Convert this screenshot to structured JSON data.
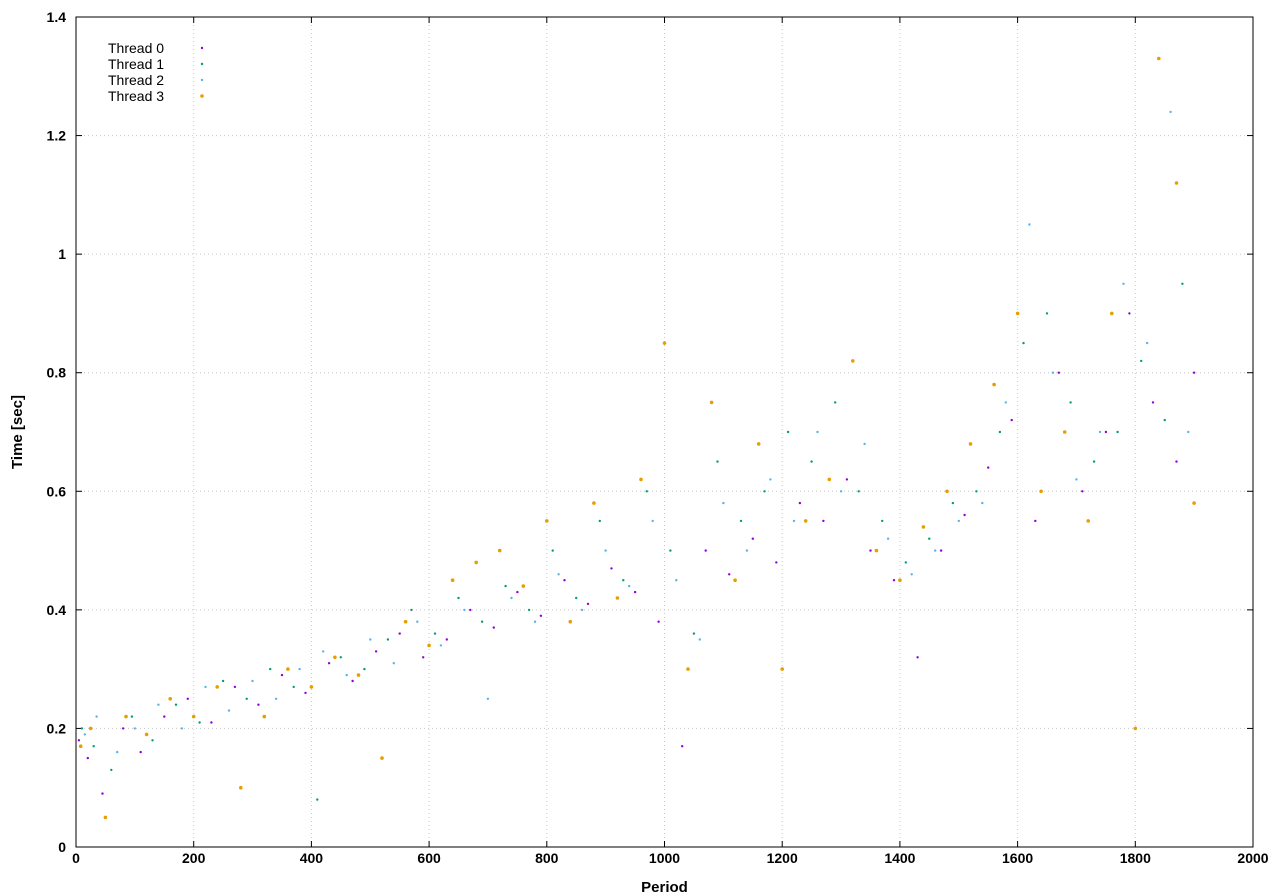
{
  "chart_data": {
    "type": "scatter",
    "title": "",
    "xlabel": "Period",
    "ylabel": "Time [sec]",
    "xlim": [
      0,
      2000
    ],
    "ylim": [
      0,
      1.4
    ],
    "xticks": [
      "0",
      "200",
      "400",
      "600",
      "800",
      "1000",
      "1200",
      "1400",
      "1600",
      "1800",
      "2000"
    ],
    "yticks": [
      "0",
      "0.2",
      "0.4",
      "0.6",
      "0.8",
      "1",
      "1.2",
      "1.4"
    ],
    "grid": true,
    "legend_position": "top-left",
    "series": [
      {
        "name": "Thread 0",
        "color": "#9400d3",
        "x": [
          5,
          20,
          45,
          80,
          110,
          150,
          190,
          230,
          270,
          310,
          350,
          390,
          430,
          470,
          510,
          550,
          590,
          630,
          670,
          710,
          750,
          790,
          830,
          870,
          910,
          950,
          990,
          1030,
          1070,
          1110,
          1150,
          1190,
          1230,
          1270,
          1310,
          1350,
          1390,
          1430,
          1470,
          1510,
          1550,
          1590,
          1630,
          1670,
          1710,
          1750,
          1790,
          1830,
          1870,
          1900
        ],
        "y": [
          0.18,
          0.15,
          0.09,
          0.2,
          0.16,
          0.22,
          0.25,
          0.21,
          0.27,
          0.24,
          0.29,
          0.26,
          0.31,
          0.28,
          0.33,
          0.36,
          0.32,
          0.35,
          0.4,
          0.37,
          0.43,
          0.39,
          0.45,
          0.41,
          0.47,
          0.43,
          0.38,
          0.17,
          0.5,
          0.46,
          0.52,
          0.48,
          0.58,
          0.55,
          0.62,
          0.5,
          0.45,
          0.32,
          0.5,
          0.56,
          0.64,
          0.72,
          0.55,
          0.8,
          0.6,
          0.7,
          0.9,
          0.75,
          0.65,
          0.8
        ]
      },
      {
        "name": "Thread 1",
        "color": "#009e73",
        "x": [
          10,
          30,
          60,
          95,
          130,
          170,
          210,
          250,
          290,
          330,
          370,
          410,
          450,
          490,
          530,
          570,
          610,
          650,
          690,
          730,
          770,
          810,
          850,
          890,
          930,
          970,
          1010,
          1050,
          1090,
          1130,
          1170,
          1210,
          1250,
          1290,
          1330,
          1370,
          1410,
          1450,
          1490,
          1530,
          1570,
          1610,
          1650,
          1690,
          1730,
          1770,
          1810,
          1850,
          1880
        ],
        "y": [
          0.2,
          0.17,
          0.13,
          0.22,
          0.18,
          0.24,
          0.21,
          0.28,
          0.25,
          0.3,
          0.27,
          0.08,
          0.32,
          0.3,
          0.35,
          0.4,
          0.36,
          0.42,
          0.38,
          0.44,
          0.4,
          0.5,
          0.42,
          0.55,
          0.45,
          0.6,
          0.5,
          0.36,
          0.65,
          0.55,
          0.6,
          0.7,
          0.65,
          0.75,
          0.6,
          0.55,
          0.48,
          0.52,
          0.58,
          0.6,
          0.7,
          0.85,
          0.9,
          0.75,
          0.65,
          0.7,
          0.82,
          0.72,
          0.95
        ]
      },
      {
        "name": "Thread 2",
        "color": "#56b4e9",
        "x": [
          15,
          35,
          70,
          100,
          140,
          180,
          220,
          260,
          300,
          340,
          380,
          420,
          460,
          500,
          540,
          580,
          620,
          660,
          700,
          740,
          780,
          820,
          860,
          900,
          940,
          980,
          1020,
          1060,
          1100,
          1140,
          1180,
          1220,
          1260,
          1300,
          1340,
          1380,
          1420,
          1460,
          1500,
          1540,
          1580,
          1620,
          1660,
          1700,
          1740,
          1780,
          1820,
          1860,
          1890
        ],
        "y": [
          0.19,
          0.22,
          0.16,
          0.2,
          0.24,
          0.2,
          0.27,
          0.23,
          0.28,
          0.25,
          0.3,
          0.33,
          0.29,
          0.35,
          0.31,
          0.38,
          0.34,
          0.4,
          0.25,
          0.42,
          0.38,
          0.46,
          0.4,
          0.5,
          0.44,
          0.55,
          0.45,
          0.35,
          0.58,
          0.5,
          0.62,
          0.55,
          0.7,
          0.6,
          0.68,
          0.52,
          0.46,
          0.5,
          0.55,
          0.58,
          0.75,
          1.05,
          0.8,
          0.62,
          0.7,
          0.95,
          0.85,
          1.24,
          0.7
        ]
      },
      {
        "name": "Thread 3",
        "color": "#e69f00",
        "x": [
          8,
          25,
          50,
          85,
          120,
          160,
          200,
          240,
          280,
          320,
          360,
          400,
          440,
          480,
          520,
          560,
          600,
          640,
          680,
          720,
          760,
          800,
          840,
          880,
          920,
          960,
          1000,
          1040,
          1080,
          1120,
          1160,
          1200,
          1240,
          1280,
          1320,
          1360,
          1400,
          1440,
          1480,
          1520,
          1560,
          1600,
          1640,
          1680,
          1720,
          1760,
          1800,
          1840,
          1870,
          1900
        ],
        "y": [
          0.17,
          0.2,
          0.05,
          0.22,
          0.19,
          0.25,
          0.22,
          0.27,
          0.1,
          0.22,
          0.3,
          0.27,
          0.32,
          0.29,
          0.15,
          0.38,
          0.34,
          0.45,
          0.48,
          0.5,
          0.44,
          0.55,
          0.38,
          0.58,
          0.42,
          0.62,
          0.85,
          0.3,
          0.75,
          0.45,
          0.68,
          0.3,
          0.55,
          0.62,
          0.82,
          0.5,
          0.45,
          0.54,
          0.6,
          0.68,
          0.78,
          0.9,
          0.6,
          0.7,
          0.55,
          0.9,
          0.2,
          1.33,
          1.12,
          0.58
        ]
      }
    ]
  }
}
